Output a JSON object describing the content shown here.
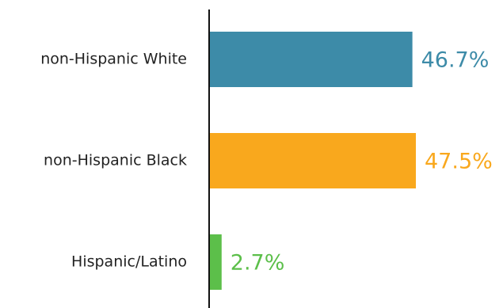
{
  "chart_data": {
    "type": "bar",
    "orientation": "horizontal",
    "title": "",
    "xlabel": "",
    "ylabel": "",
    "categories": [
      "non-Hispanic White",
      "non-Hispanic Black",
      "Hispanic/Latino"
    ],
    "values": [
      46.7,
      47.5,
      2.7
    ],
    "value_labels": [
      "46.7%",
      "47.5%",
      "2.7%"
    ],
    "colors": [
      "#3d8ba8",
      "#f9a81d",
      "#5cbf4a"
    ],
    "xlim": [
      0,
      47.5
    ],
    "grid": false,
    "legend": "none"
  }
}
